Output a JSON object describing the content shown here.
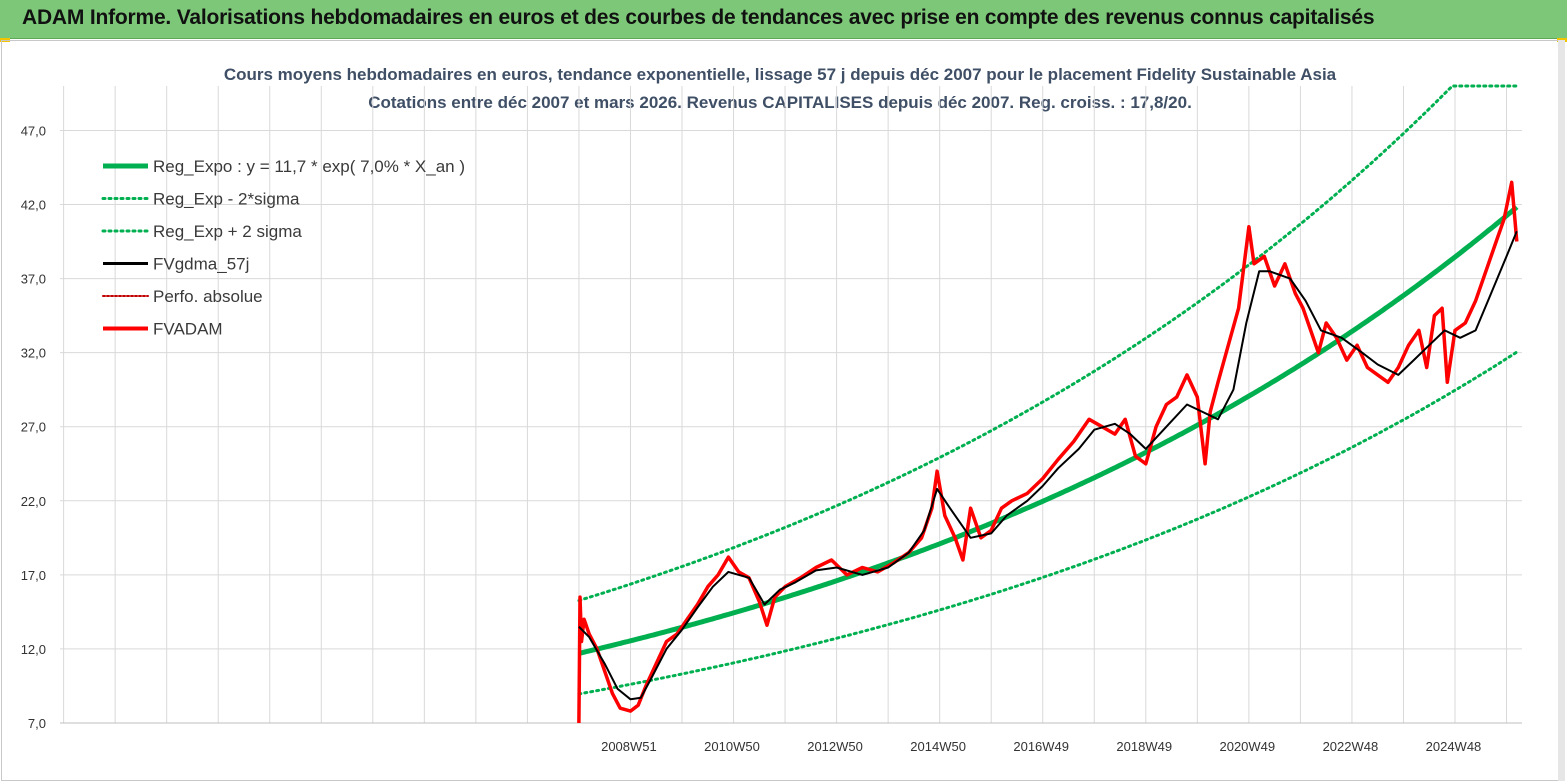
{
  "banner": {
    "text": "ADAM Informe. Valorisations hebdomadaires en euros et des courbes de tendances avec prise en compte des revenus connus capitalisés"
  },
  "colors": {
    "banner": "#7dc878",
    "trend": "#00b050",
    "band": "#00b050",
    "smooth": "#000000",
    "price": "#ff0000",
    "perfo": "#c00000",
    "grid": "#d9d9d9"
  },
  "chart_data": {
    "type": "line",
    "title": "Cours moyens hebdomadaires en euros, tendance exponentielle, lissage 57 j depuis déc 2007 pour le placement Fidelity Sustainable Asia",
    "subtitle": "Cotations entre déc 2007 et mars 2026. Revenus CAPITALISES depuis déc 2007. Reg. croiss. : 17,8/20.",
    "ylim": [
      7,
      50
    ],
    "yticks": [
      "7,0",
      "12,0",
      "17,0",
      "22,0",
      "27,0",
      "32,0",
      "37,0",
      "42,0",
      "47,0"
    ],
    "yticks_values": [
      7,
      12,
      17,
      22,
      27,
      32,
      37,
      42,
      47
    ],
    "xlim": [
      1997.93,
      2026.3
    ],
    "xtick_labels": [
      "2008W51",
      "2010W50",
      "2012W50",
      "2014W50",
      "2016W49",
      "2018W49",
      "2020W49",
      "2022W48",
      "2024W48"
    ],
    "xtick_values": [
      2008.97,
      2010.97,
      2012.97,
      2014.97,
      2016.97,
      2018.97,
      2020.97,
      2022.97,
      2024.97
    ],
    "grid": true,
    "legend_position": "top-left",
    "regression": {
      "a": 11.7,
      "rate": 0.07,
      "x0": 2008.0,
      "x1": 2026.2,
      "sigma_factor_low": 0.766,
      "sigma_factor_high": 1.305,
      "cap": 50.0
    },
    "series": [
      {
        "name": "Reg_Expo : y = 11,7 * exp( 7,0% *  X_an )",
        "style": "solid-thick",
        "color": "#00b050"
      },
      {
        "name": "Reg_Exp - 2*sigma",
        "style": "dotted",
        "color": "#00b050"
      },
      {
        "name": "Reg_Exp + 2 sigma",
        "style": "dotted",
        "color": "#00b050"
      },
      {
        "name": "FVgdma_57j",
        "style": "solid-thin",
        "color": "#000000",
        "x": [
          2008.0,
          2008.2,
          2008.5,
          2008.75,
          2009.0,
          2009.2,
          2009.4,
          2009.7,
          2010.0,
          2010.3,
          2010.6,
          2010.9,
          2011.3,
          2011.6,
          2011.9,
          2012.2,
          2012.6,
          2013.0,
          2013.5,
          2014.0,
          2014.4,
          2014.7,
          2014.95,
          2015.2,
          2015.6,
          2016.0,
          2016.3,
          2016.7,
          2017.0,
          2017.3,
          2017.7,
          2018.0,
          2018.4,
          2018.7,
          2019.0,
          2019.4,
          2019.8,
          2020.1,
          2020.4,
          2020.7,
          2020.95,
          2021.2,
          2021.4,
          2021.8,
          2022.1,
          2022.4,
          2022.8,
          2023.2,
          2023.5,
          2023.9,
          2024.2,
          2024.5,
          2024.8,
          2025.1,
          2025.4,
          2025.7,
          2026.0,
          2026.2
        ],
        "y": [
          13.5,
          12.8,
          11.0,
          9.3,
          8.6,
          8.7,
          10.0,
          12.0,
          13.3,
          14.8,
          16.2,
          17.2,
          16.8,
          15.0,
          16.0,
          16.5,
          17.3,
          17.5,
          17.0,
          17.5,
          18.5,
          20.0,
          22.8,
          21.5,
          19.5,
          19.8,
          21.0,
          22.0,
          23.0,
          24.2,
          25.5,
          26.8,
          27.2,
          26.5,
          25.5,
          27.0,
          28.5,
          28.0,
          27.5,
          29.5,
          34.0,
          37.5,
          37.5,
          37.0,
          35.5,
          33.5,
          33.0,
          32.0,
          31.2,
          30.5,
          31.5,
          32.5,
          33.5,
          33.0,
          33.5,
          36.0,
          38.5,
          40.2
        ]
      },
      {
        "name": "Perfo. absolue",
        "style": "dotted-thin",
        "color": "#c00000"
      },
      {
        "name": "FVADAM",
        "style": "solid-thick",
        "color": "#ff0000",
        "x": [
          2008.0,
          2008.02,
          2008.05,
          2008.1,
          2008.2,
          2008.35,
          2008.5,
          2008.65,
          2008.8,
          2009.0,
          2009.15,
          2009.3,
          2009.5,
          2009.7,
          2009.9,
          2010.1,
          2010.3,
          2010.5,
          2010.7,
          2010.9,
          2011.1,
          2011.3,
          2011.5,
          2011.65,
          2011.8,
          2012.0,
          2012.3,
          2012.6,
          2012.9,
          2013.2,
          2013.5,
          2013.8,
          2014.1,
          2014.4,
          2014.65,
          2014.85,
          2014.95,
          2015.1,
          2015.3,
          2015.45,
          2015.6,
          2015.8,
          2016.0,
          2016.2,
          2016.4,
          2016.7,
          2017.0,
          2017.3,
          2017.6,
          2017.9,
          2018.15,
          2018.4,
          2018.6,
          2018.8,
          2019.0,
          2019.2,
          2019.4,
          2019.6,
          2019.8,
          2020.0,
          2020.15,
          2020.25,
          2020.4,
          2020.6,
          2020.8,
          2021.0,
          2021.1,
          2021.3,
          2021.5,
          2021.7,
          2021.9,
          2022.05,
          2022.2,
          2022.35,
          2022.5,
          2022.7,
          2022.9,
          2023.1,
          2023.3,
          2023.5,
          2023.7,
          2023.9,
          2024.1,
          2024.3,
          2024.45,
          2024.6,
          2024.75,
          2024.85,
          2025.0,
          2025.2,
          2025.4,
          2025.6,
          2025.8,
          2025.95,
          2026.1,
          2026.2
        ],
        "y": [
          7.0,
          15.5,
          12.5,
          14.0,
          13.0,
          12.0,
          10.5,
          9.0,
          8.0,
          7.8,
          8.2,
          9.5,
          11.0,
          12.5,
          13.0,
          14.0,
          15.0,
          16.2,
          17.0,
          18.2,
          17.2,
          16.8,
          15.2,
          13.6,
          15.5,
          16.2,
          16.8,
          17.5,
          18.0,
          17.0,
          17.5,
          17.2,
          17.8,
          18.5,
          19.5,
          21.5,
          24.0,
          21.0,
          19.5,
          18.0,
          21.5,
          19.5,
          20.0,
          21.5,
          22.0,
          22.5,
          23.5,
          24.8,
          26.0,
          27.5,
          27.0,
          26.5,
          27.5,
          25.0,
          24.5,
          27.0,
          28.5,
          29.0,
          30.5,
          29.0,
          24.5,
          28.0,
          30.0,
          32.5,
          35.0,
          40.5,
          38.0,
          38.5,
          36.5,
          38.0,
          36.0,
          35.0,
          33.5,
          32.0,
          34.0,
          33.0,
          31.5,
          32.5,
          31.0,
          30.5,
          30.0,
          31.0,
          32.5,
          33.5,
          31.0,
          34.5,
          35.0,
          30.0,
          33.5,
          34.0,
          35.5,
          37.5,
          39.5,
          41.0,
          43.5,
          39.5
        ]
      }
    ]
  }
}
